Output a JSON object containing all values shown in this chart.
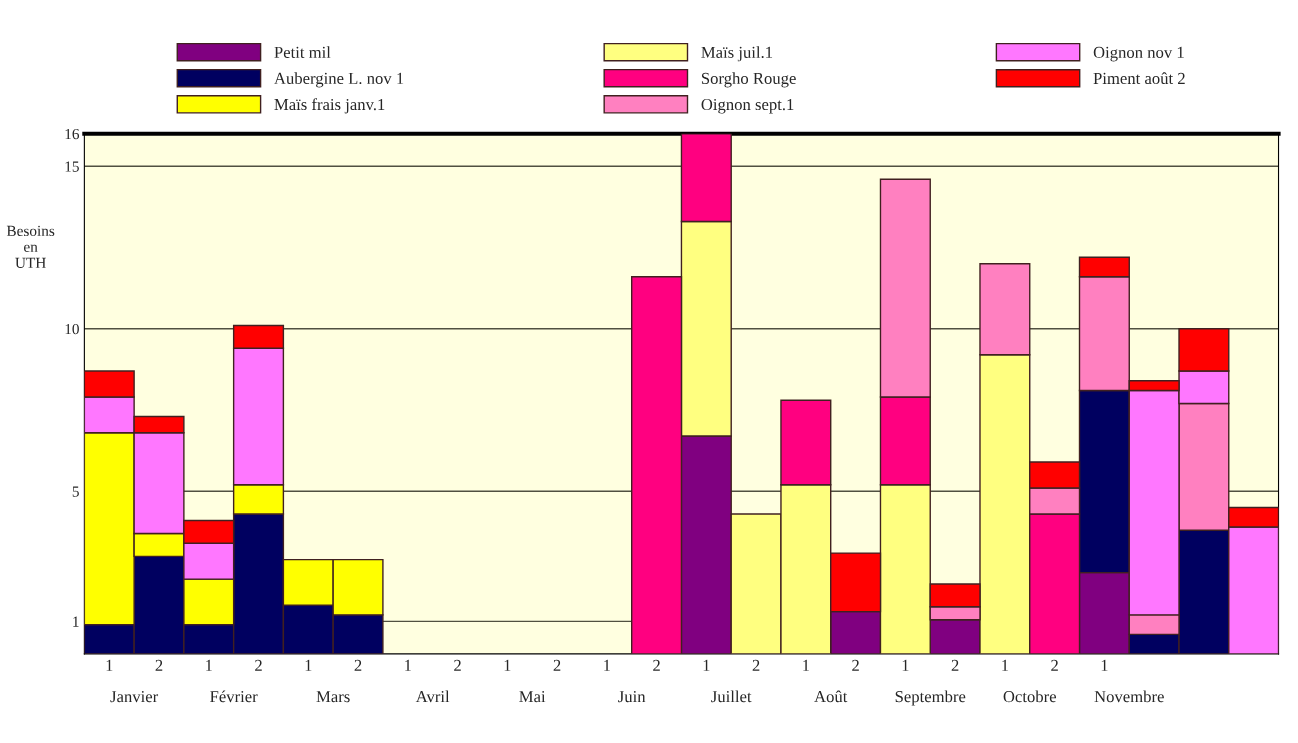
{
  "chart_data": {
    "type": "bar",
    "stacked": true,
    "ylabel": "Besoins\nen\nUTH",
    "categories": [
      null,
      null,
      null,
      null,
      null,
      null,
      null,
      null,
      null,
      null,
      null,
      null,
      null,
      null,
      null,
      null,
      null,
      null,
      null,
      null,
      null,
      null,
      null,
      null
    ],
    "series": [
      {
        "name": "Petit mil",
        "color": "#800080",
        "values": [
          0,
          0,
          0,
          0,
          0,
          0,
          0,
          0,
          0,
          0,
          0,
          0,
          6.7,
          0,
          0,
          1.3,
          0,
          1.05,
          0,
          0,
          2.5,
          0,
          0,
          0
        ]
      },
      {
        "name": "Aubergine L. nov 1",
        "color": "#000060",
        "values": [
          0.9,
          3.0,
          0.9,
          4.3,
          1.5,
          1.2,
          0,
          0,
          0,
          0,
          0,
          0,
          0,
          0,
          0,
          0,
          0,
          0,
          0,
          0,
          5.6,
          0.6,
          3.8,
          0
        ]
      },
      {
        "name": "Maïs frais janv.1",
        "color": "#ffff00",
        "values": [
          5.9,
          0.7,
          1.4,
          0.9,
          1.4,
          1.7,
          0,
          0,
          0,
          0,
          0,
          0,
          0,
          0,
          0,
          0,
          0,
          0,
          0,
          0,
          0,
          0,
          0,
          0
        ]
      },
      {
        "name": "Maïs juil.1",
        "color": "#ffff80",
        "values": [
          0,
          0,
          0,
          0,
          0,
          0,
          0,
          0,
          0,
          0,
          0,
          0,
          6.6,
          4.3,
          5.2,
          0,
          5.2,
          0,
          9.2,
          0,
          0,
          0,
          0,
          0
        ]
      },
      {
        "name": "Sorgho Rouge",
        "color": "#ff0080",
        "values": [
          0,
          0,
          0,
          0,
          0,
          0,
          0,
          0,
          0,
          0,
          0,
          11.6,
          2.7,
          0,
          2.6,
          0,
          2.7,
          0,
          0,
          4.3,
          0,
          0,
          0,
          0
        ]
      },
      {
        "name": "Oignon sept.1",
        "color": "#ff80c0",
        "values": [
          0,
          0,
          0,
          0,
          0,
          0,
          0,
          0,
          0,
          0,
          0,
          0,
          0,
          0,
          0,
          0,
          6.7,
          0.4,
          2.8,
          0.8,
          3.5,
          0.6,
          3.9,
          0
        ]
      },
      {
        "name": "Oignon nov 1",
        "color": "#ff77ff",
        "values": [
          1.1,
          3.1,
          1.1,
          4.2,
          0,
          0,
          0,
          0,
          0,
          0,
          0,
          0,
          0,
          0,
          0,
          0,
          0,
          0,
          0,
          0,
          0,
          6.9,
          1.0,
          3.9
        ]
      },
      {
        "name": "Piment août 2",
        "color": "#ff0000",
        "values": [
          0.8,
          0.5,
          0.7,
          0.7,
          0,
          0,
          0,
          0,
          0,
          0,
          0,
          0,
          0,
          0,
          0,
          1.8,
          0,
          0.7,
          0,
          0.8,
          0.6,
          0.3,
          1.3,
          0.6
        ]
      }
    ],
    "ylim": [
      0,
      16
    ],
    "yticks": [
      1,
      5,
      10,
      15,
      16
    ],
    "grid": "y",
    "legend": "top",
    "annotations": [
      "Janvier",
      "1",
      "2",
      "Février",
      "1",
      "2",
      "Mars",
      "1",
      "2",
      "Avril",
      "1",
      "2",
      "Mai",
      "1",
      "2",
      "Juin",
      "1",
      "2",
      "Juillet",
      "1",
      "2",
      "Août",
      "1",
      "2",
      "Septembre",
      "1",
      "2",
      "Octobre",
      "1",
      "2",
      "Novembre",
      "1"
    ]
  }
}
